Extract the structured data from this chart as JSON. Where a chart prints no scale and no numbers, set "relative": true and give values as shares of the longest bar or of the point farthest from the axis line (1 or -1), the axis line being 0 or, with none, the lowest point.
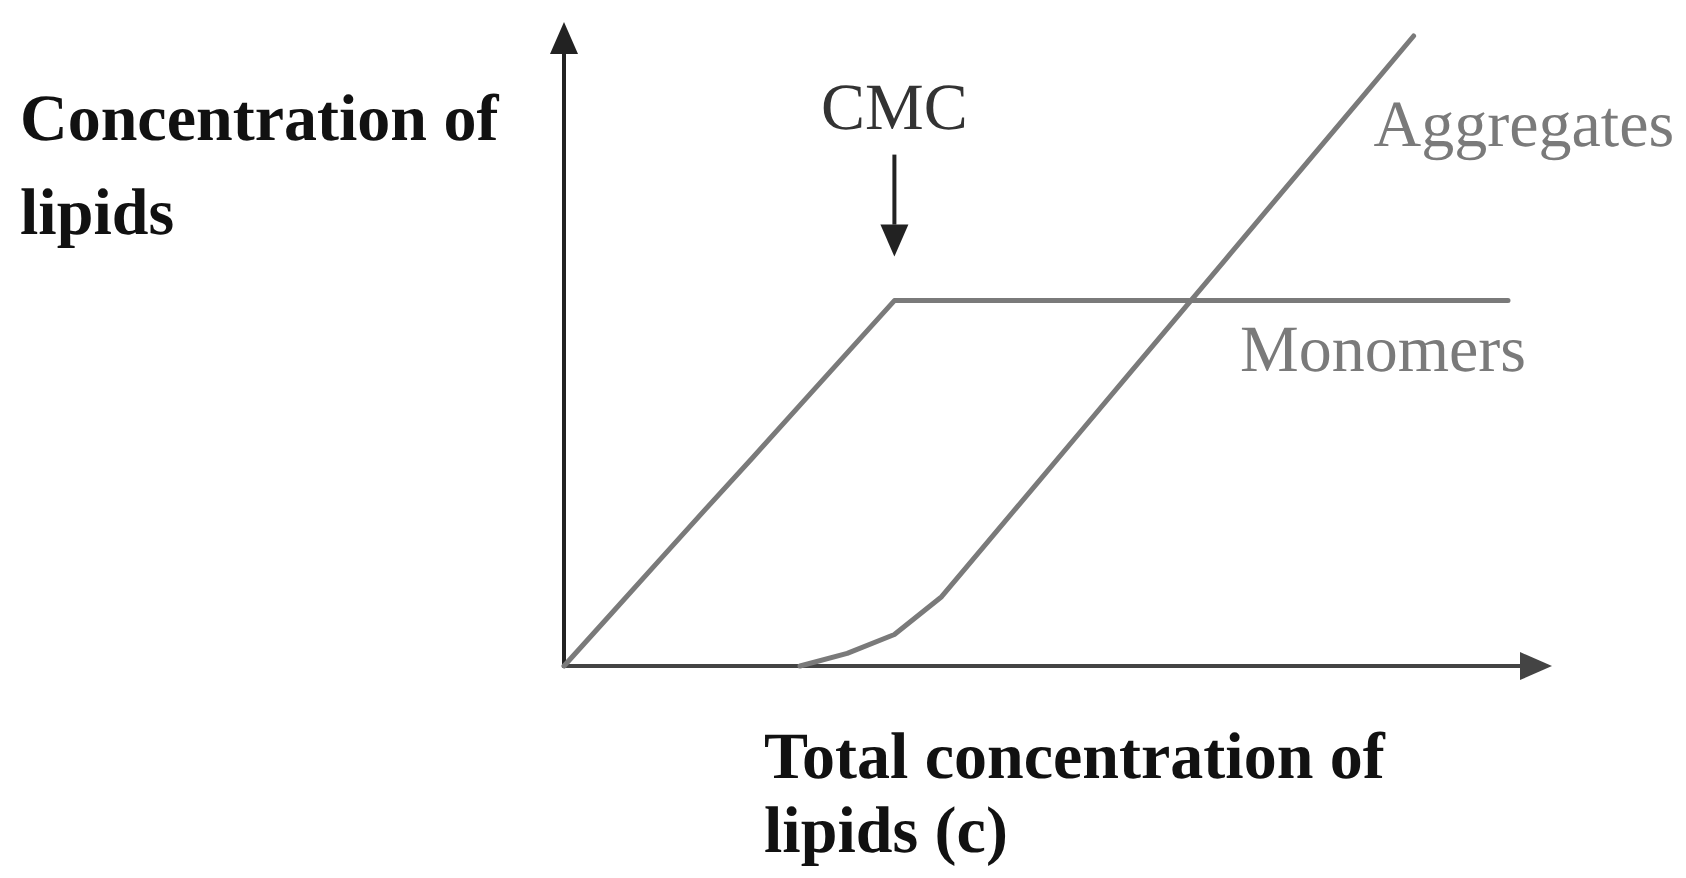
{
  "chart_data": {
    "type": "line",
    "relative": true,
    "xlabel": "Total concentration of lipids (c)",
    "ylabel": "Concentration of lipids",
    "annotations": [
      "CMC"
    ],
    "categories": [
      null,
      null,
      null,
      null,
      null,
      null,
      null,
      null,
      null,
      null,
      null,
      null,
      null,
      null,
      null,
      null,
      null,
      null,
      null,
      null,
      null
    ],
    "series": [
      {
        "name": "Monomers",
        "color": "#7a7a7a",
        "values": [
          0,
          0.083,
          0.166,
          0.249,
          0.331,
          0.414,
          0.497,
          0.58,
          0.58,
          0.58,
          0.58,
          0.58,
          0.58,
          0.58,
          0.58,
          0.58,
          0.58,
          0.58,
          0.58,
          0.58,
          0.58
        ]
      },
      {
        "name": "Aggregates",
        "color": "#7a7a7a",
        "values": [
          null,
          null,
          null,
          null,
          null,
          0,
          0.02,
          0.05,
          0.11,
          0.199,
          0.288,
          0.377,
          0.466,
          0.555,
          0.644,
          0.733,
          0.822,
          0.911,
          1,
          null,
          null
        ]
      }
    ]
  }
}
